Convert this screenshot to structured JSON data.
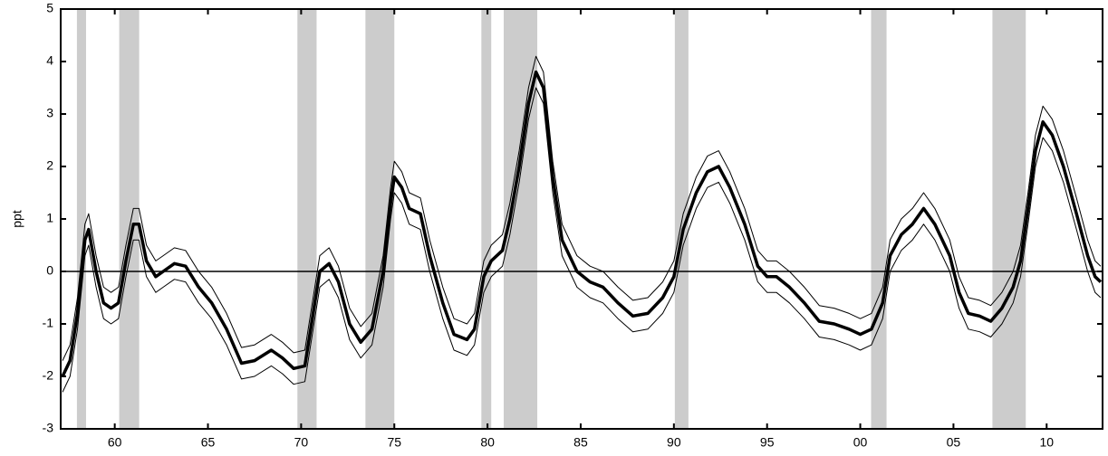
{
  "chart_data": {
    "type": "line",
    "y_label": "ppt",
    "xlim": [
      1957.1,
      2013.0
    ],
    "xticks": [
      {
        "value": 1960,
        "label": "60"
      },
      {
        "value": 1965,
        "label": "65"
      },
      {
        "value": 1970,
        "label": "70"
      },
      {
        "value": 1975,
        "label": "75"
      },
      {
        "value": 1980,
        "label": "80"
      },
      {
        "value": 1985,
        "label": "85"
      },
      {
        "value": 1990,
        "label": "90"
      },
      {
        "value": 1995,
        "label": "95"
      },
      {
        "value": 2000,
        "label": "00"
      },
      {
        "value": 2005,
        "label": "05"
      },
      {
        "value": 2010,
        "label": "10"
      }
    ],
    "ylim": [
      -3,
      5
    ],
    "yticks": [
      -3,
      -2,
      -1,
      0,
      1,
      2,
      3,
      4,
      5
    ],
    "reference_line": 0,
    "shading_color": "#cccccc",
    "shaded_periods": [
      [
        1957.97,
        1958.46
      ],
      [
        1960.24,
        1961.31
      ],
      [
        1969.8,
        1970.83
      ],
      [
        1973.45,
        1975.0
      ],
      [
        1979.67,
        1980.2
      ],
      [
        1980.87,
        1982.67
      ],
      [
        1990.05,
        1990.78
      ],
      [
        2000.58,
        2001.41
      ],
      [
        2007.09,
        2008.88
      ]
    ],
    "x": [
      1957.2,
      1957.6,
      1958.0,
      1958.4,
      1958.6,
      1959.0,
      1959.4,
      1959.8,
      1960.2,
      1960.6,
      1961.0,
      1961.3,
      1961.7,
      1962.2,
      1962.6,
      1963.2,
      1963.8,
      1964.5,
      1965.2,
      1966.0,
      1966.8,
      1967.5,
      1968.4,
      1969.0,
      1969.6,
      1970.2,
      1970.6,
      1971.0,
      1971.5,
      1972.0,
      1972.6,
      1973.2,
      1973.8,
      1974.4,
      1974.8,
      1975.0,
      1975.4,
      1975.8,
      1976.4,
      1976.9,
      1977.6,
      1978.2,
      1978.9,
      1979.3,
      1979.8,
      1980.2,
      1980.8,
      1981.2,
      1981.7,
      1982.2,
      1982.6,
      1983.0,
      1983.5,
      1984.0,
      1984.8,
      1985.5,
      1986.2,
      1987.0,
      1987.8,
      1988.6,
      1989.4,
      1990.0,
      1990.5,
      1991.2,
      1991.8,
      1992.4,
      1993.0,
      1993.8,
      1994.5,
      1995.0,
      1995.5,
      1996.2,
      1997.0,
      1997.8,
      1998.6,
      1999.4,
      2000.0,
      2000.6,
      2001.2,
      2001.6,
      2002.2,
      2002.8,
      2003.4,
      2004.0,
      2004.8,
      2005.3,
      2005.8,
      2006.4,
      2007.0,
      2007.6,
      2008.2,
      2008.6,
      2009.0,
      2009.4,
      2009.8,
      2010.3,
      2010.9,
      2011.6,
      2012.2,
      2012.6,
      2012.9
    ],
    "series": [
      {
        "color": "#000000",
        "width": 3.5,
        "values": [
          -2.0,
          -1.7,
          -0.8,
          0.6,
          0.8,
          0.0,
          -0.6,
          -0.7,
          -0.6,
          0.2,
          0.9,
          0.9,
          0.2,
          -0.1,
          0.0,
          0.15,
          0.1,
          -0.3,
          -0.6,
          -1.1,
          -1.75,
          -1.7,
          -1.5,
          -1.65,
          -1.85,
          -1.8,
          -0.9,
          0.0,
          0.15,
          -0.2,
          -1.0,
          -1.35,
          -1.1,
          0.0,
          1.3,
          1.8,
          1.6,
          1.2,
          1.1,
          0.3,
          -0.6,
          -1.2,
          -1.3,
          -1.1,
          -0.1,
          0.2,
          0.4,
          1.0,
          2.0,
          3.2,
          3.8,
          3.5,
          1.8,
          0.6,
          0.0,
          -0.2,
          -0.3,
          -0.6,
          -0.85,
          -0.8,
          -0.5,
          -0.1,
          0.8,
          1.5,
          1.9,
          2.0,
          1.6,
          0.9,
          0.1,
          -0.1,
          -0.1,
          -0.3,
          -0.6,
          -0.95,
          -1.0,
          -1.1,
          -1.2,
          -1.1,
          -0.6,
          0.3,
          0.7,
          0.9,
          1.2,
          0.9,
          0.3,
          -0.4,
          -0.8,
          -0.85,
          -0.95,
          -0.7,
          -0.3,
          0.2,
          1.2,
          2.3,
          2.85,
          2.6,
          2.0,
          1.1,
          0.3,
          -0.1,
          -0.2
        ]
      },
      {
        "color": "#000000",
        "width": 1,
        "values": [
          -1.7,
          -1.4,
          -0.5,
          0.9,
          1.1,
          0.3,
          -0.3,
          -0.4,
          -0.3,
          0.5,
          1.2,
          1.2,
          0.5,
          0.2,
          0.3,
          0.45,
          0.4,
          0.0,
          -0.3,
          -0.8,
          -1.45,
          -1.4,
          -1.2,
          -1.35,
          -1.55,
          -1.5,
          -0.6,
          0.3,
          0.45,
          0.1,
          -0.7,
          -1.05,
          -0.8,
          0.3,
          1.6,
          2.1,
          1.9,
          1.5,
          1.4,
          0.6,
          -0.3,
          -0.9,
          -1.0,
          -0.8,
          0.2,
          0.5,
          0.7,
          1.3,
          2.3,
          3.5,
          4.1,
          3.8,
          2.1,
          0.9,
          0.3,
          0.1,
          0.0,
          -0.3,
          -0.55,
          -0.5,
          -0.2,
          0.2,
          1.1,
          1.8,
          2.2,
          2.3,
          1.9,
          1.2,
          0.4,
          0.2,
          0.2,
          0.0,
          -0.3,
          -0.65,
          -0.7,
          -0.8,
          -0.9,
          -0.8,
          -0.3,
          0.6,
          1.0,
          1.2,
          1.5,
          1.2,
          0.6,
          -0.1,
          -0.5,
          -0.55,
          -0.65,
          -0.4,
          0.0,
          0.5,
          1.5,
          2.6,
          3.15,
          2.9,
          2.3,
          1.4,
          0.6,
          0.2,
          0.1
        ]
      },
      {
        "color": "#000000",
        "width": 1,
        "values": [
          -2.3,
          -2.0,
          -1.1,
          0.3,
          0.5,
          -0.3,
          -0.9,
          -1.0,
          -0.9,
          -0.1,
          0.6,
          0.6,
          -0.1,
          -0.4,
          -0.3,
          -0.15,
          -0.2,
          -0.6,
          -0.9,
          -1.4,
          -2.05,
          -2.0,
          -1.8,
          -1.95,
          -2.15,
          -2.1,
          -1.2,
          -0.3,
          -0.15,
          -0.5,
          -1.3,
          -1.65,
          -1.4,
          -0.3,
          1.0,
          1.5,
          1.3,
          0.9,
          0.8,
          0.0,
          -0.9,
          -1.5,
          -1.6,
          -1.4,
          -0.4,
          -0.1,
          0.1,
          0.7,
          1.7,
          2.9,
          3.5,
          3.2,
          1.5,
          0.3,
          -0.3,
          -0.5,
          -0.6,
          -0.9,
          -1.15,
          -1.1,
          -0.8,
          -0.4,
          0.5,
          1.2,
          1.6,
          1.7,
          1.3,
          0.6,
          -0.2,
          -0.4,
          -0.4,
          -0.6,
          -0.9,
          -1.25,
          -1.3,
          -1.4,
          -1.5,
          -1.4,
          -0.9,
          0.0,
          0.4,
          0.6,
          0.9,
          0.6,
          0.0,
          -0.7,
          -1.1,
          -1.15,
          -1.25,
          -1.0,
          -0.6,
          -0.1,
          0.9,
          2.0,
          2.55,
          2.3,
          1.7,
          0.8,
          0.0,
          -0.4,
          -0.5
        ]
      }
    ]
  }
}
